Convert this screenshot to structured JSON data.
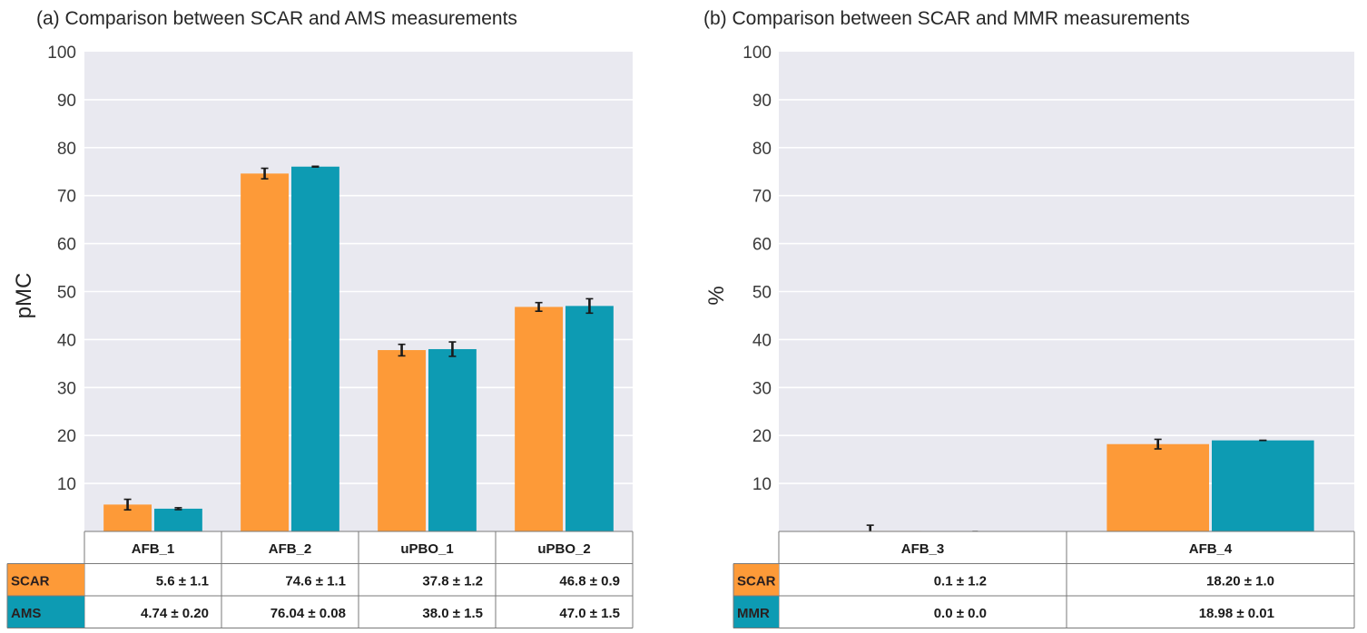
{
  "colors": {
    "scar": "#fd9a38",
    "reference": "#0d9bb3",
    "plot_bg": "#e9e9f0",
    "grid": "#ffffff",
    "error_bar": "#1a1a1a"
  },
  "chart_data": [
    {
      "type": "bar",
      "title": "(a) Comparison between SCAR and AMS measurements",
      "xlabel": "",
      "ylabel": "pMC",
      "ylim": [
        0,
        100
      ],
      "yticks": [
        "10",
        "20",
        "30",
        "40",
        "50",
        "60",
        "70",
        "80",
        "90",
        "100"
      ],
      "grid": true,
      "categories": [
        "AFB_1",
        "AFB_2",
        "uPBO_1",
        "uPBO_2"
      ],
      "series": [
        {
          "name": "SCAR",
          "color_key": "scar",
          "values": [
            5.6,
            74.6,
            37.8,
            46.8
          ],
          "errors": [
            1.1,
            1.1,
            1.2,
            0.9
          ],
          "labels": [
            "5.6 ± 1.1",
            "74.6 ± 1.1",
            "37.8 ± 1.2",
            "46.8 ± 0.9"
          ]
        },
        {
          "name": "AMS",
          "color_key": "reference",
          "values": [
            4.74,
            76.04,
            38.0,
            47.0
          ],
          "errors": [
            0.2,
            0.08,
            1.5,
            1.5
          ],
          "labels": [
            "4.74 ± 0.20",
            "76.04 ± 0.08",
            "38.0 ± 1.5",
            "47.0 ± 1.5"
          ]
        }
      ]
    },
    {
      "type": "bar",
      "title": "(b) Comparison between SCAR and MMR measurements",
      "xlabel": "",
      "ylabel": "%",
      "ylim": [
        0,
        100
      ],
      "yticks": [
        "10",
        "20",
        "30",
        "40",
        "50",
        "60",
        "70",
        "80",
        "90",
        "100"
      ],
      "grid": true,
      "categories": [
        "AFB_3",
        "AFB_4"
      ],
      "series": [
        {
          "name": "SCAR",
          "color_key": "scar",
          "values": [
            0.1,
            18.2
          ],
          "errors": [
            1.2,
            1.0
          ],
          "labels": [
            "0.1 ± 1.2",
            "18.20 ± 1.0"
          ]
        },
        {
          "name": "MMR",
          "color_key": "reference",
          "values": [
            0.0,
            18.98
          ],
          "errors": [
            0.0,
            0.01
          ],
          "labels": [
            "0.0 ± 0.0",
            "18.98 ± 0.01"
          ]
        }
      ]
    }
  ]
}
